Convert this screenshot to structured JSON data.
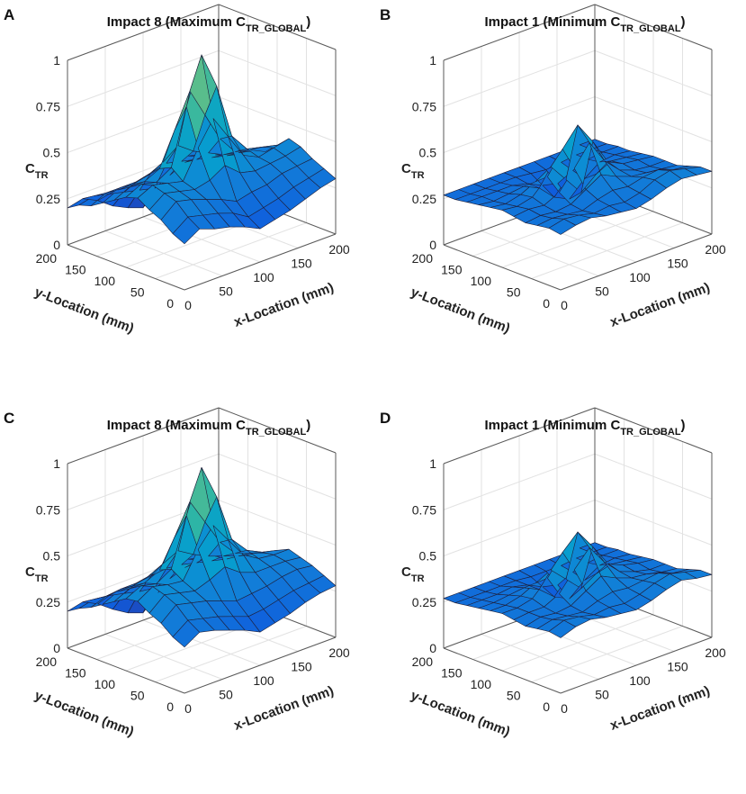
{
  "figure": {
    "subscript_tr": "TR",
    "subscript_global": "TR_GLOBAL"
  },
  "chart_data": [
    {
      "panel": "A",
      "type": "surface3d",
      "title_main": "Impact 8 (Maximum C",
      "title_sub": "TR_GLOBAL",
      "title_end": ")",
      "zlabel_main": "C",
      "zlabel_sub": "TR",
      "xlabel": "x-Location (mm)",
      "ylabel": "y-Location (mm)",
      "xlim": [
        0,
        200
      ],
      "ylim": [
        0,
        200
      ],
      "zlim": [
        0,
        1
      ],
      "xticks": [
        "0",
        "50",
        "100",
        "150",
        "200"
      ],
      "yticks": [
        "0",
        "50",
        "100",
        "150",
        "200"
      ],
      "zticks": [
        "0",
        "0.25",
        "0.5",
        "0.75",
        "1"
      ],
      "peak_value": 1.0,
      "grid_size": 11,
      "surface_z": [
        [
          0.25,
          0.3,
          0.27,
          0.25,
          0.22,
          0.18,
          0.2,
          0.22,
          0.25,
          0.28,
          0.3
        ],
        [
          0.28,
          0.34,
          0.32,
          0.3,
          0.27,
          0.22,
          0.24,
          0.26,
          0.29,
          0.31,
          0.33
        ],
        [
          0.33,
          0.4,
          0.38,
          0.35,
          0.32,
          0.28,
          0.3,
          0.31,
          0.34,
          0.35,
          0.36
        ],
        [
          0.36,
          0.42,
          0.4,
          0.38,
          0.4,
          0.45,
          0.38,
          0.36,
          0.37,
          0.38,
          0.4
        ],
        [
          0.4,
          0.44,
          0.42,
          0.4,
          0.55,
          0.68,
          0.55,
          0.42,
          0.38,
          0.4,
          0.42
        ],
        [
          0.38,
          0.42,
          0.4,
          0.45,
          0.75,
          1.0,
          0.8,
          0.5,
          0.4,
          0.38,
          0.36
        ],
        [
          0.34,
          0.38,
          0.38,
          0.42,
          0.6,
          0.78,
          0.62,
          0.46,
          0.36,
          0.34,
          0.3
        ],
        [
          0.3,
          0.34,
          0.34,
          0.36,
          0.4,
          0.46,
          0.4,
          0.36,
          0.32,
          0.3,
          0.28
        ],
        [
          0.26,
          0.3,
          0.3,
          0.3,
          0.32,
          0.34,
          0.32,
          0.3,
          0.28,
          0.26,
          0.24
        ],
        [
          0.24,
          0.26,
          0.24,
          0.22,
          0.2,
          0.18,
          0.22,
          0.26,
          0.26,
          0.24,
          0.22
        ],
        [
          0.2,
          0.22,
          0.18,
          0.12,
          0.08,
          0.05,
          0.12,
          0.2,
          0.24,
          0.22,
          0.2
        ]
      ]
    },
    {
      "panel": "B",
      "type": "surface3d",
      "title_main": "Impact 1 (Minimum C",
      "title_sub": "TR_GLOBAL",
      "title_end": ")",
      "zlabel_main": "C",
      "zlabel_sub": "TR",
      "xlabel": "x-Location (mm)",
      "ylabel": "y-Location (mm)",
      "xlim": [
        0,
        200
      ],
      "ylim": [
        0,
        200
      ],
      "zlim": [
        0,
        1
      ],
      "xticks": [
        "0",
        "50",
        "100",
        "150",
        "200"
      ],
      "yticks": [
        "0",
        "50",
        "100",
        "150",
        "200"
      ],
      "zticks": [
        "0",
        "0.25",
        "0.5",
        "0.75",
        "1"
      ],
      "peak_value": 0.62,
      "grid_size": 11,
      "surface_z": [
        [
          0.3,
          0.32,
          0.33,
          0.31,
          0.3,
          0.29,
          0.31,
          0.34,
          0.36,
          0.35,
          0.34
        ],
        [
          0.31,
          0.33,
          0.32,
          0.3,
          0.31,
          0.3,
          0.32,
          0.36,
          0.38,
          0.36,
          0.34
        ],
        [
          0.3,
          0.31,
          0.3,
          0.29,
          0.32,
          0.34,
          0.33,
          0.35,
          0.36,
          0.33,
          0.32
        ],
        [
          0.29,
          0.3,
          0.29,
          0.3,
          0.35,
          0.4,
          0.36,
          0.33,
          0.32,
          0.31,
          0.3
        ],
        [
          0.3,
          0.31,
          0.3,
          0.34,
          0.44,
          0.55,
          0.42,
          0.34,
          0.31,
          0.3,
          0.3
        ],
        [
          0.31,
          0.3,
          0.32,
          0.4,
          0.52,
          0.62,
          0.5,
          0.36,
          0.32,
          0.31,
          0.3
        ],
        [
          0.3,
          0.29,
          0.31,
          0.35,
          0.4,
          0.3,
          0.2,
          0.27,
          0.31,
          0.3,
          0.29
        ],
        [
          0.29,
          0.28,
          0.29,
          0.3,
          0.26,
          0.18,
          0.14,
          0.22,
          0.28,
          0.29,
          0.28
        ],
        [
          0.28,
          0.28,
          0.28,
          0.28,
          0.26,
          0.22,
          0.2,
          0.24,
          0.27,
          0.28,
          0.28
        ],
        [
          0.27,
          0.27,
          0.27,
          0.27,
          0.27,
          0.26,
          0.25,
          0.26,
          0.27,
          0.27,
          0.27
        ],
        [
          0.27,
          0.27,
          0.27,
          0.27,
          0.27,
          0.27,
          0.27,
          0.27,
          0.27,
          0.27,
          0.27
        ]
      ]
    },
    {
      "panel": "C",
      "type": "surface3d",
      "title_main": "Impact 8 (Maximum C",
      "title_sub": "TR_GLOBAL",
      "title_end": ")",
      "zlabel_main": "C",
      "zlabel_sub": "TR",
      "xlabel": "x-Location (mm)",
      "ylabel": "y-Location (mm)",
      "xlim": [
        0,
        200
      ],
      "ylim": [
        0,
        200
      ],
      "zlim": [
        0,
        1
      ],
      "xticks": [
        "0",
        "50",
        "100",
        "150",
        "200"
      ],
      "yticks": [
        "0",
        "50",
        "100",
        "150",
        "200"
      ],
      "zticks": [
        "0",
        "0.25",
        "0.5",
        "0.75",
        "1"
      ],
      "peak_value": 0.95,
      "grid_size": 11,
      "surface_z": [
        [
          0.25,
          0.3,
          0.28,
          0.25,
          0.22,
          0.18,
          0.2,
          0.22,
          0.25,
          0.27,
          0.28
        ],
        [
          0.28,
          0.34,
          0.32,
          0.3,
          0.27,
          0.24,
          0.25,
          0.27,
          0.29,
          0.3,
          0.31
        ],
        [
          0.33,
          0.4,
          0.38,
          0.36,
          0.33,
          0.3,
          0.31,
          0.32,
          0.34,
          0.35,
          0.34
        ],
        [
          0.36,
          0.43,
          0.41,
          0.39,
          0.42,
          0.46,
          0.4,
          0.37,
          0.37,
          0.37,
          0.36
        ],
        [
          0.4,
          0.45,
          0.43,
          0.42,
          0.56,
          0.66,
          0.55,
          0.44,
          0.39,
          0.38,
          0.38
        ],
        [
          0.39,
          0.43,
          0.41,
          0.46,
          0.72,
          0.95,
          0.76,
          0.5,
          0.41,
          0.37,
          0.35
        ],
        [
          0.35,
          0.39,
          0.39,
          0.43,
          0.58,
          0.74,
          0.6,
          0.46,
          0.37,
          0.34,
          0.31
        ],
        [
          0.31,
          0.35,
          0.35,
          0.37,
          0.41,
          0.45,
          0.4,
          0.36,
          0.33,
          0.3,
          0.28
        ],
        [
          0.27,
          0.3,
          0.31,
          0.31,
          0.32,
          0.33,
          0.32,
          0.3,
          0.28,
          0.26,
          0.25
        ],
        [
          0.24,
          0.26,
          0.25,
          0.23,
          0.21,
          0.2,
          0.22,
          0.25,
          0.26,
          0.25,
          0.23
        ],
        [
          0.2,
          0.22,
          0.18,
          0.12,
          0.07,
          0.04,
          0.12,
          0.2,
          0.24,
          0.22,
          0.21
        ]
      ]
    },
    {
      "panel": "D",
      "type": "surface3d",
      "title_main": "Impact 1 (Minimum C",
      "title_sub": "TR_GLOBAL",
      "title_end": ")",
      "zlabel_main": "C",
      "zlabel_sub": "TR",
      "xlabel": "x-Location (mm)",
      "ylabel": "y-Location (mm)",
      "xlim": [
        0,
        200
      ],
      "ylim": [
        0,
        200
      ],
      "zlim": [
        0,
        1
      ],
      "xticks": [
        "0",
        "50",
        "100",
        "150",
        "200"
      ],
      "yticks": [
        "0",
        "50",
        "100",
        "150",
        "200"
      ],
      "zticks": [
        "0",
        "0.25",
        "0.5",
        "0.75",
        "1"
      ],
      "peak_value": 0.6,
      "grid_size": 11,
      "surface_z": [
        [
          0.3,
          0.33,
          0.34,
          0.32,
          0.31,
          0.3,
          0.32,
          0.35,
          0.37,
          0.35,
          0.34
        ],
        [
          0.31,
          0.34,
          0.33,
          0.31,
          0.32,
          0.31,
          0.33,
          0.36,
          0.38,
          0.36,
          0.34
        ],
        [
          0.3,
          0.32,
          0.31,
          0.3,
          0.33,
          0.35,
          0.34,
          0.35,
          0.36,
          0.33,
          0.32
        ],
        [
          0.29,
          0.31,
          0.3,
          0.31,
          0.36,
          0.41,
          0.37,
          0.34,
          0.33,
          0.31,
          0.3
        ],
        [
          0.3,
          0.31,
          0.31,
          0.35,
          0.45,
          0.54,
          0.43,
          0.35,
          0.32,
          0.3,
          0.3
        ],
        [
          0.31,
          0.31,
          0.33,
          0.41,
          0.52,
          0.6,
          0.49,
          0.37,
          0.33,
          0.31,
          0.3
        ],
        [
          0.3,
          0.3,
          0.32,
          0.36,
          0.4,
          0.32,
          0.24,
          0.29,
          0.31,
          0.3,
          0.29
        ],
        [
          0.29,
          0.29,
          0.3,
          0.31,
          0.27,
          0.2,
          0.16,
          0.23,
          0.28,
          0.29,
          0.28
        ],
        [
          0.28,
          0.28,
          0.28,
          0.29,
          0.27,
          0.23,
          0.21,
          0.25,
          0.27,
          0.28,
          0.28
        ],
        [
          0.27,
          0.27,
          0.27,
          0.27,
          0.27,
          0.26,
          0.26,
          0.26,
          0.27,
          0.27,
          0.27
        ],
        [
          0.27,
          0.27,
          0.27,
          0.27,
          0.27,
          0.27,
          0.27,
          0.27,
          0.27,
          0.27,
          0.27
        ]
      ]
    }
  ]
}
